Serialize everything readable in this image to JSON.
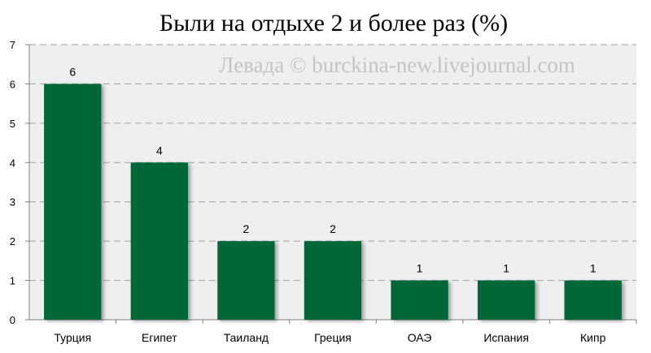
{
  "colors": {
    "bar": "#006837",
    "plot_bg": "#efefef",
    "grid": "#a0a0a0",
    "axis": "#808080"
  },
  "chart_data": {
    "type": "bar",
    "title": "Были на отдыхе 2 и более раз (%)",
    "watermark": "Левада © burckina-new.livejournal.com",
    "categories": [
      "Турция",
      "Египет",
      "Таиланд",
      "Греция",
      "ОАЭ",
      "Испания",
      "Кипр"
    ],
    "values": [
      6,
      4,
      2,
      2,
      1,
      1,
      1
    ],
    "data_labels": [
      "6",
      "4",
      "2",
      "2",
      "1",
      "1",
      "1"
    ],
    "yticks": [
      "0",
      "1",
      "2",
      "3",
      "4",
      "5",
      "6",
      "7"
    ],
    "ylim": [
      0,
      7
    ],
    "grid": true,
    "legend": "none",
    "xlabel": "",
    "ylabel": ""
  }
}
